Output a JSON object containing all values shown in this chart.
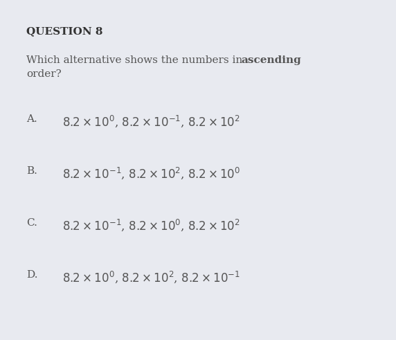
{
  "title": "QUESTION 8",
  "bg_color": "#e8eaf0",
  "title_color": "#333333",
  "text_color": "#555555",
  "option_color": "#555555",
  "question_normal": "Which alternative shows the numbers in ",
  "question_bold": "ascending",
  "question_newline": "order?",
  "options": [
    {
      "label": "A.",
      "text": "$8.2\\times10^{0}$, $8.2\\times10^{-1}$, $8.2\\times10^{2}$"
    },
    {
      "label": "B.",
      "text": "$8.2\\times10^{-1}$, $8.2\\times10^{2}$, $8.2\\times10^{0}$"
    },
    {
      "label": "C.",
      "text": "$8.2\\times10^{-1}$, $8.2\\times10^{0}$, $8.2\\times10^{2}$"
    },
    {
      "label": "D.",
      "text": "$8.2\\times10^{0}$, $8.2\\times10^{2}$, $8.2\\times10^{-1}$"
    }
  ],
  "fig_width": 5.72,
  "fig_height": 4.91,
  "dpi": 100,
  "title_fontsize": 11,
  "body_fontsize": 11,
  "option_fontsize": 12
}
